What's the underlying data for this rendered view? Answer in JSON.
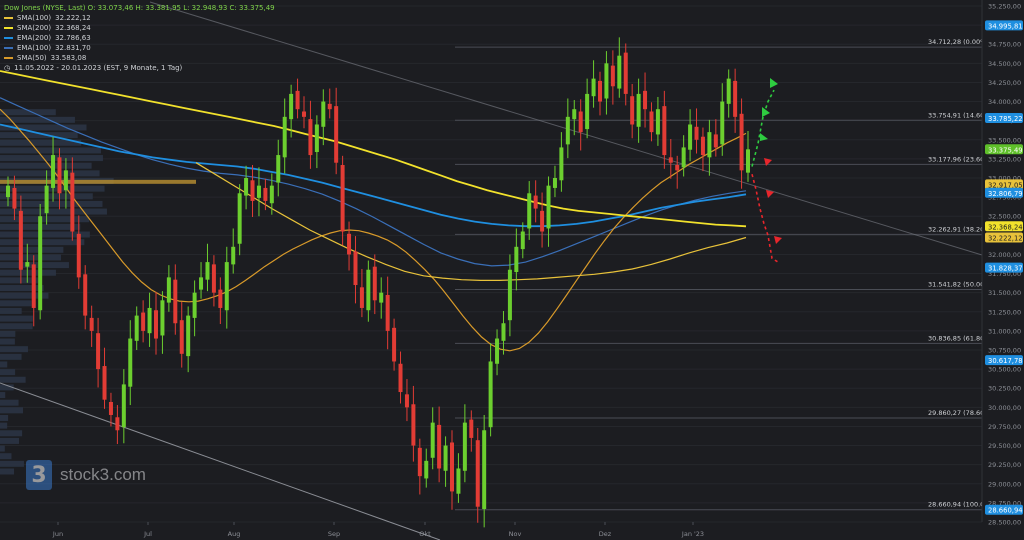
{
  "legend": {
    "header": "Dow Jones (NYSE, Last)   O: 33.073,46   H: 33.381,95   L: 32.948,93   C: 33.375,49",
    "items": [
      {
        "name": "SMA(100)",
        "value": "32.222,12",
        "color": "#e8c23a"
      },
      {
        "name": "SMA(200)",
        "value": "32.368,24",
        "color": "#f2e22c"
      },
      {
        "name": "EMA(200)",
        "value": "32.786,63",
        "color": "#1f8fe0"
      },
      {
        "name": "EMA(100)",
        "value": "32.831,70",
        "color": "#3a6fb8"
      },
      {
        "name": "SMA(50)",
        "value": "33.583,08",
        "color": "#d89a2a"
      }
    ],
    "period": "11.05.2022 - 20.01.2023   (EST, 9 Monate, 1 Tag)"
  },
  "logo": {
    "mark": "3",
    "word": "stock3.com"
  },
  "chart_data": {
    "type": "candlestick",
    "ylim": [
      28500,
      35250
    ],
    "y_ticks": [
      {
        "v": 35250,
        "label": "35.250,00"
      },
      {
        "v": 35000,
        "label": "35.000,00"
      },
      {
        "v": 34750,
        "label": "34.750,00"
      },
      {
        "v": 34500,
        "label": "34.500,00"
      },
      {
        "v": 34250,
        "label": "34.250,00"
      },
      {
        "v": 34000,
        "label": "34.000,00"
      },
      {
        "v": 33750,
        "label": "33.750,00"
      },
      {
        "v": 33500,
        "label": "33.500,00"
      },
      {
        "v": 33250,
        "label": "33.250,00"
      },
      {
        "v": 33000,
        "label": "33.000,00"
      },
      {
        "v": 32750,
        "label": "32.750,00"
      },
      {
        "v": 32500,
        "label": "32.500,00"
      },
      {
        "v": 32250,
        "label": "32.250,00"
      },
      {
        "v": 32000,
        "label": "32.000,00"
      },
      {
        "v": 31750,
        "label": "31.750,00"
      },
      {
        "v": 31500,
        "label": "31.500,00"
      },
      {
        "v": 31250,
        "label": "31.250,00"
      },
      {
        "v": 31000,
        "label": "31.000,00"
      },
      {
        "v": 30750,
        "label": "30.750,00"
      },
      {
        "v": 30500,
        "label": "30.500,00"
      },
      {
        "v": 30250,
        "label": "30.250,00"
      },
      {
        "v": 30000,
        "label": "30.000,00"
      },
      {
        "v": 29750,
        "label": "29.750,00"
      },
      {
        "v": 29500,
        "label": "29.500,00"
      },
      {
        "v": 29250,
        "label": "29.250,00"
      },
      {
        "v": 29000,
        "label": "29.000,00"
      },
      {
        "v": 28750,
        "label": "28.750,00"
      },
      {
        "v": 28500,
        "label": "28.500,00"
      }
    ],
    "x_labels": [
      "Jun",
      "Jul",
      "Aug",
      "Sep",
      "Okt",
      "Nov",
      "Dez",
      "Jan '23"
    ],
    "fib_levels": [
      {
        "v": 34712.28,
        "label": "34.712,28 (0.00%)"
      },
      {
        "v": 33754.91,
        "label": "33.754,91 (14.60%)"
      },
      {
        "v": 33177.96,
        "label": "33.177,96 (23.60%)"
      },
      {
        "v": 32262.91,
        "label": "32.262,91 (38.20%)"
      },
      {
        "v": 31541.82,
        "label": "31.541,82 (50.00%)"
      },
      {
        "v": 30836.85,
        "label": "30.836,85 (61.80%)"
      },
      {
        "v": 29860.27,
        "label": "29.860,27 (78.60%)"
      },
      {
        "v": 28660.94,
        "label": "28.660,94 (100.00%)"
      }
    ],
    "price_tags": [
      {
        "v": 34995.81,
        "label": "34.995,81",
        "bg": "#1f8fe0",
        "fg": "#ffffff"
      },
      {
        "v": 33785.22,
        "label": "33.785,22",
        "bg": "#1f8fe0",
        "fg": "#ffffff"
      },
      {
        "v": 33375.49,
        "label": "33.375,49",
        "bg": "#5fbf2a",
        "fg": "#ffffff"
      },
      {
        "v": 32917.05,
        "label": "32.917,05",
        "bg": "#e8c23a",
        "fg": "#1c1d21"
      },
      {
        "v": 32806.79,
        "label": "32.806,79",
        "bg": "#1f8fe0",
        "fg": "#ffffff"
      },
      {
        "v": 32368.24,
        "label": "32.368,24",
        "bg": "#f2e22c",
        "fg": "#1c1d21"
      },
      {
        "v": 32222.12,
        "label": "32.222,12",
        "bg": "#e8c23a",
        "fg": "#1c1d21"
      },
      {
        "v": 31828.37,
        "label": "31.828,37",
        "bg": "#1f8fe0",
        "fg": "#ffffff"
      },
      {
        "v": 30617.78,
        "label": "30.617,78",
        "bg": "#1f8fe0",
        "fg": "#ffffff"
      },
      {
        "v": 28660.94,
        "label": "28.660,94",
        "bg": "#1f8fe0",
        "fg": "#ffffff"
      }
    ],
    "candle_closes": [
      32900,
      32600,
      31800,
      31900,
      31300,
      32500,
      32900,
      33300,
      32800,
      33100,
      32300,
      31700,
      31200,
      31000,
      30500,
      30100,
      29900,
      29700,
      30300,
      30900,
      31200,
      31000,
      31300,
      30900,
      31400,
      31700,
      31100,
      30700,
      31200,
      31500,
      31700,
      31900,
      31500,
      31300,
      31900,
      32100,
      32800,
      33000,
      32700,
      32900,
      32700,
      32900,
      33300,
      33800,
      34100,
      33900,
      33800,
      33300,
      33700,
      34000,
      33900,
      33200,
      32300,
      32000,
      31600,
      31300,
      31800,
      31400,
      31500,
      31000,
      30600,
      30200,
      30000,
      29500,
      29100,
      29300,
      29800,
      29200,
      29500,
      28900,
      29200,
      29800,
      29600,
      28700,
      29700,
      30600,
      30900,
      31100,
      31800,
      32100,
      32300,
      32800,
      32600,
      32300,
      32900,
      33000,
      33400,
      33800,
      33900,
      33600,
      34100,
      34300,
      34000,
      34500,
      34200,
      34600,
      34100,
      33700,
      34100,
      33900,
      33600,
      33900,
      33300,
      33200,
      33100,
      33400,
      33700,
      33500,
      33300,
      33600,
      33400,
      34000,
      34300,
      33800,
      33100,
      33375
    ],
    "sma50": [
      33900,
      33780,
      33640,
      33500,
      33350,
      33200,
      33040,
      32870,
      32700,
      32540,
      32380,
      32220,
      32060,
      31900,
      31760,
      31640,
      31540,
      31470,
      31420,
      31390,
      31380,
      31390,
      31420,
      31460,
      31510,
      31580,
      31660,
      31750,
      31840,
      31920,
      32000,
      32070,
      32130,
      32190,
      32240,
      32280,
      32310,
      32320,
      32310,
      32280,
      32240,
      32190,
      32120,
      32030,
      31920,
      31800,
      31670,
      31520,
      31360,
      31200,
      31050,
      30920,
      30820,
      30760,
      30740,
      30770,
      30850,
      30970,
      31120,
      31290,
      31470,
      31650,
      31830,
      32010,
      32180,
      32340,
      32480,
      32610,
      32730,
      32840,
      32940,
      33020,
      33100,
      33180,
      33250,
      33320,
      33390,
      33460,
      33520,
      33583
    ],
    "sma200": [
      34400,
      34360,
      34320,
      34280,
      34240,
      34200,
      34160,
      34120,
      34080,
      34040,
      34000,
      33960,
      33920,
      33880,
      33840,
      33800,
      33760,
      33720,
      33680,
      33630,
      33580,
      33530,
      33480,
      33420,
      33360,
      33300,
      33240,
      33170,
      33100,
      33030,
      32960,
      32900,
      32840,
      32790,
      32740,
      32690,
      32640,
      32600,
      32570,
      32550,
      32530,
      32510,
      32490,
      32470,
      32450,
      32430,
      32410,
      32390,
      32380,
      32368
    ],
    "sma100": [
      33200,
      33050,
      32900,
      32750,
      32600,
      32460,
      32320,
      32200,
      32080,
      31970,
      31870,
      31780,
      31720,
      31690,
      31670,
      31660,
      31660,
      31670,
      31680,
      31700,
      31720,
      31740,
      31770,
      31810,
      31870,
      31940,
      32020,
      32090,
      32150,
      32222
    ],
    "ema200": [
      33700,
      33650,
      33600,
      33550,
      33500,
      33450,
      33400,
      33350,
      33310,
      33270,
      33240,
      33210,
      33190,
      33170,
      33150,
      33120,
      33080,
      33040,
      32990,
      32940,
      32880,
      32820,
      32760,
      32700,
      32640,
      32580,
      32520,
      32470,
      32430,
      32400,
      32380,
      32370,
      32370,
      32380,
      32400,
      32430,
      32470,
      32510,
      32560,
      32610,
      32650,
      32690,
      32720,
      32750,
      32787
    ],
    "ema100": [
      34050,
      33950,
      33850,
      33750,
      33650,
      33560,
      33470,
      33390,
      33310,
      33240,
      33180,
      33130,
      33090,
      33060,
      33040,
      33010,
      32970,
      32920,
      32860,
      32790,
      32700,
      32600,
      32490,
      32370,
      32250,
      32130,
      32020,
      31940,
      31880,
      31850,
      31860,
      31900,
      31970,
      32050,
      32140,
      32230,
      32320,
      32410,
      32500,
      32580,
      32650,
      32710,
      32760,
      32800,
      32832
    ],
    "scenario_up": [
      33150,
      33450,
      33800,
      34000,
      34150
    ],
    "scenario_down": [
      33050,
      32850,
      32600,
      32400,
      32250,
      31950,
      31900
    ]
  }
}
